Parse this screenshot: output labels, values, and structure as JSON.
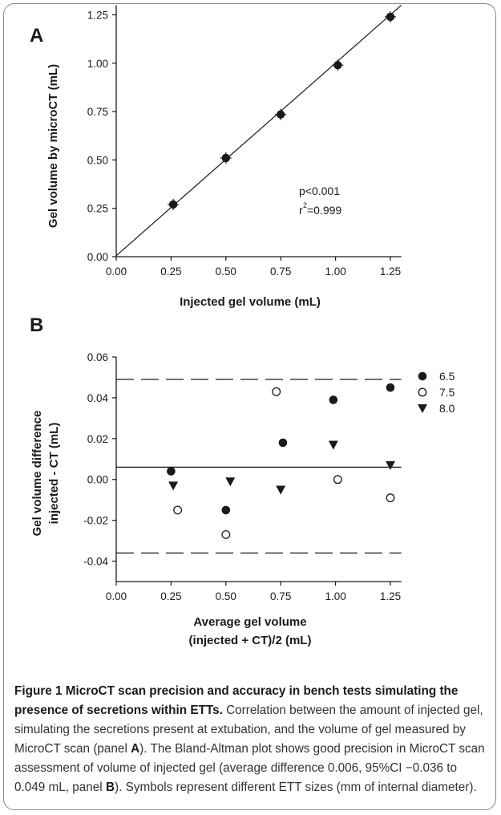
{
  "panels": [
    {
      "letter": "A",
      "chart_data": {
        "type": "scatter",
        "xlabel": "Injected gel volume (mL)",
        "ylabel": "Gel volume by microCT (mL)",
        "xlim": [
          0,
          1.3
        ],
        "ylim": [
          0,
          1.3
        ],
        "xticks": [
          "0.00",
          "0.25",
          "0.50",
          "0.75",
          "1.00",
          "1.25"
        ],
        "yticks": [
          "0.00",
          "0.25",
          "0.50",
          "0.75",
          "1.00",
          "1.25"
        ],
        "points": [
          {
            "x": 0.26,
            "y": 0.27
          },
          {
            "x": 0.5,
            "y": 0.51
          },
          {
            "x": 0.75,
            "y": 0.735
          },
          {
            "x": 1.01,
            "y": 0.99
          },
          {
            "x": 1.25,
            "y": 1.24
          }
        ],
        "fit_line": {
          "x": [
            0,
            1.3
          ],
          "y": [
            0.005,
            1.3
          ]
        },
        "annotation_p": "p<0.001",
        "annotation_r_base": "r",
        "annotation_r_sup": "2",
        "annotation_r_rest": "=0.999"
      }
    },
    {
      "letter": "B",
      "chart_data": {
        "type": "scatter",
        "xlabel": "Average gel volume",
        "xlabel_line2": "(injected + CT)/2 (mL)",
        "ylabel": "Gel volume difference",
        "ylabel_line2": "injected - CT (mL)",
        "xlim": [
          0,
          1.3
        ],
        "ylim": [
          -0.05,
          0.06
        ],
        "xticks": [
          "0.00",
          "0.25",
          "0.50",
          "0.75",
          "1.00",
          "1.25"
        ],
        "yticks": [
          "-0.04",
          "-0.02",
          "0.00",
          "0.02",
          "0.04",
          "0.06"
        ],
        "mean_line": 0.006,
        "limits": [
          -0.036,
          0.049
        ],
        "series": [
          {
            "name": "6.5",
            "marker": "filled-circle",
            "points": [
              {
                "x": 0.25,
                "y": 0.004
              },
              {
                "x": 0.5,
                "y": -0.015
              },
              {
                "x": 0.76,
                "y": 0.018
              },
              {
                "x": 0.99,
                "y": 0.039
              },
              {
                "x": 1.25,
                "y": 0.045
              }
            ]
          },
          {
            "name": "7.5",
            "marker": "open-circle",
            "points": [
              {
                "x": 0.28,
                "y": -0.015
              },
              {
                "x": 0.5,
                "y": -0.027
              },
              {
                "x": 0.73,
                "y": 0.043
              },
              {
                "x": 1.01,
                "y": 0.0
              },
              {
                "x": 1.25,
                "y": -0.009
              }
            ]
          },
          {
            "name": "8.0",
            "marker": "down-triangle",
            "points": [
              {
                "x": 0.26,
                "y": -0.003
              },
              {
                "x": 0.52,
                "y": -0.001
              },
              {
                "x": 0.75,
                "y": -0.005
              },
              {
                "x": 0.99,
                "y": 0.017
              },
              {
                "x": 1.25,
                "y": 0.007
              }
            ]
          }
        ]
      }
    }
  ],
  "caption": {
    "title": "Figure 1 MicroCT scan precision and accuracy in bench tests simulating the presence of secretions within ETTs.",
    "p1": " Correlation between the amount of injected gel, simulating the secretions present at extubation, and the volume of gel measured by MicroCT scan (panel ",
    "p1_bold": "A",
    "p2": "). The Bland-Altman plot shows good precision in MicroCT scan assessment of volume of injected gel (average difference 0.006, 95%CI −0.036 to 0.049 mL, panel ",
    "p2_bold": "B",
    "p3": "). Symbols represent different ETT sizes (mm of internal diameter)."
  }
}
